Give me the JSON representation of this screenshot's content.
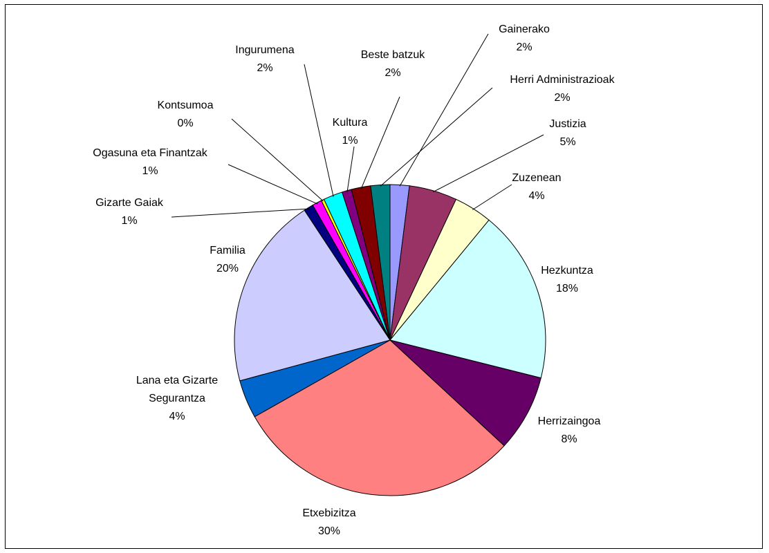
{
  "chart_data": {
    "type": "pie",
    "title": "",
    "start_angle_deg": 90,
    "direction": "clockwise",
    "slices": [
      {
        "label": "Gainerako",
        "value": 2,
        "value_label": "2%",
        "color": "#9999FF"
      },
      {
        "label": "Justizia",
        "value": 5,
        "value_label": "5%",
        "color": "#993366"
      },
      {
        "label": "Zuzenean",
        "value": 4,
        "value_label": "4%",
        "color": "#FFFFCC"
      },
      {
        "label": "Hezkuntza",
        "value": 18,
        "value_label": "18%",
        "color": "#CCFFFF"
      },
      {
        "label": "Herrizaingoa",
        "value": 8,
        "value_label": "8%",
        "color": "#660066"
      },
      {
        "label": "Etxebizitza",
        "value": 30,
        "value_label": "30%",
        "color": "#FF8080"
      },
      {
        "label": "Lana eta Gizarte Segurantza",
        "label_lines": [
          "Lana eta Gizarte",
          "Segurantza"
        ],
        "value": 4,
        "value_label": "4%",
        "color": "#0066CC"
      },
      {
        "label": "Familia",
        "value": 20,
        "value_label": "20%",
        "color": "#CCCCFF"
      },
      {
        "label": "Gizarte Gaiak",
        "value": 1,
        "value_label": "1%",
        "color": "#000080"
      },
      {
        "label": "Ogasuna eta Finantzak",
        "value": 1,
        "value_label": "1%",
        "color": "#FF00FF"
      },
      {
        "label": "Kontsumoa",
        "value": 0.3,
        "value_label": "0%",
        "color": "#FFFF00"
      },
      {
        "label": "Ingurumena",
        "value": 2,
        "value_label": "2%",
        "color": "#00FFFF"
      },
      {
        "label": "Kultura",
        "value": 1,
        "value_label": "1%",
        "color": "#800080"
      },
      {
        "label": "Beste batzuk",
        "value": 2,
        "value_label": "2%",
        "color": "#800000"
      },
      {
        "label": "Herri Administrazioak",
        "value": 2,
        "value_label": "2%",
        "color": "#008080"
      }
    ]
  }
}
